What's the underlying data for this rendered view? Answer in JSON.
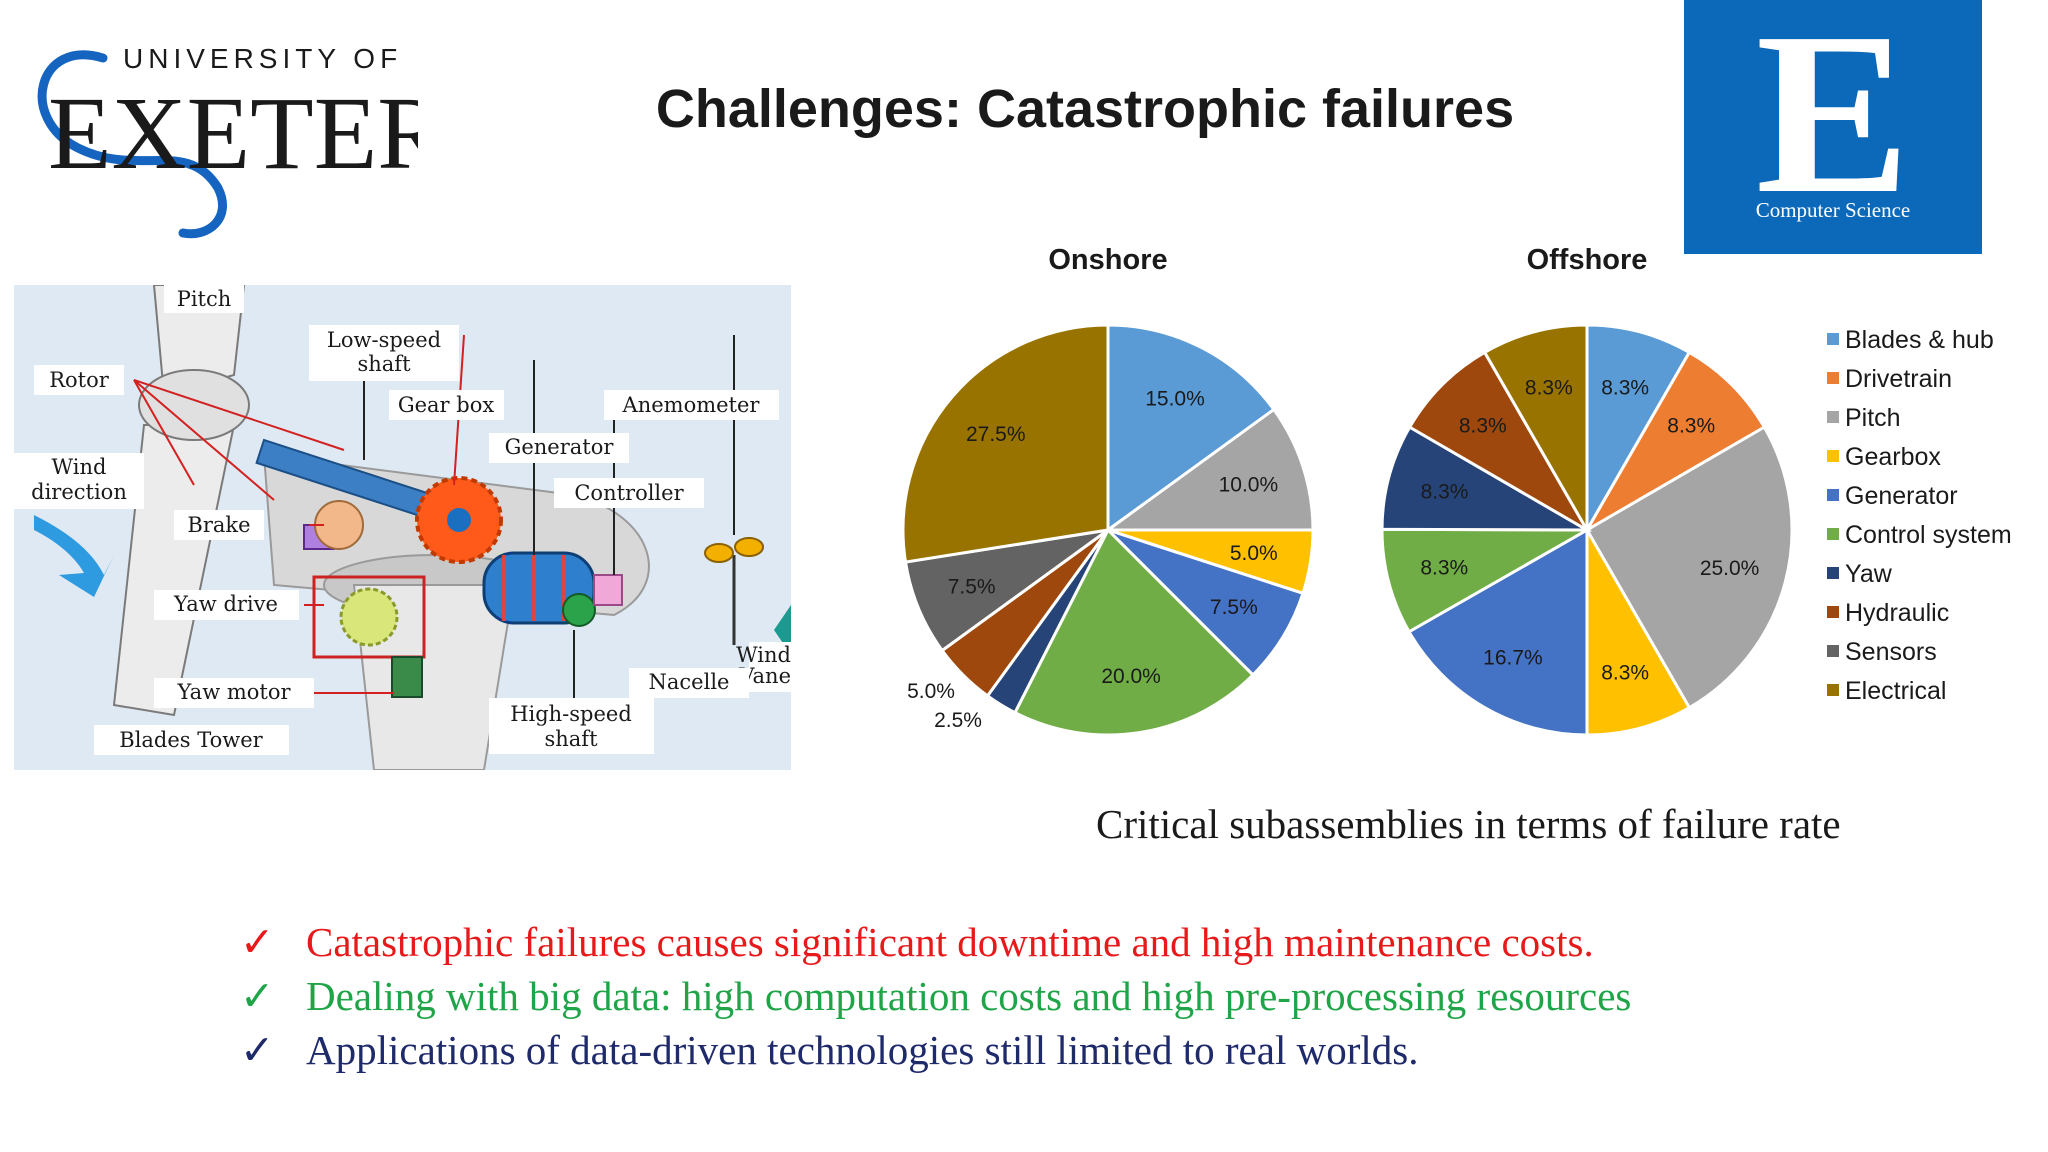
{
  "header": {
    "title": "Challenges: Catastrophic failures",
    "university_logo": {
      "line1": "UNIVERSITY OF",
      "line2": "EXETER"
    },
    "cs_logo": {
      "letter": "E",
      "text": "Computer Science",
      "color": "#0c68b8"
    }
  },
  "diagram": {
    "labels": {
      "pitch": "Pitch",
      "rotor": "Rotor",
      "low_speed_shaft_1": "Low-speed",
      "low_speed_shaft_2": "shaft",
      "gear_box": "Gear box",
      "anemometer": "Anemometer",
      "generator": "Generator",
      "wind_direction_1": "Wind",
      "wind_direction_2": "direction",
      "controller": "Controller",
      "brake": "Brake",
      "yaw_drive": "Yaw drive",
      "wind_vane_1": "Wind",
      "wind_vane_2": "Vane",
      "nacelle": "Nacelle",
      "yaw_motor": "Yaw motor",
      "high_speed_shaft_1": "High-speed",
      "high_speed_shaft_2": "shaft",
      "blades_tower": "Blades Tower"
    }
  },
  "chart_data": [
    {
      "type": "pie",
      "title": "Onshore",
      "categories": [
        "Blades & hub",
        "Pitch",
        "Gearbox",
        "Generator",
        "Control system",
        "Yaw",
        "Hydraulic",
        "Sensors",
        "Electrical"
      ],
      "values": [
        15.0,
        10.0,
        5.0,
        7.5,
        20.0,
        2.5,
        5.0,
        7.5,
        27.5
      ],
      "labels": [
        "15.0%",
        "10.0%",
        "5.0%",
        "7.5%",
        "20.0%",
        "2.5%",
        "5.0%",
        "7.5%",
        "27.5%"
      ],
      "colors": [
        "#5b9bd5",
        "#a5a5a5",
        "#ffc000",
        "#4472c4",
        "#70ad47",
        "#264478",
        "#9e480e",
        "#636363",
        "#997300"
      ]
    },
    {
      "type": "pie",
      "title": "Offshore",
      "categories": [
        "Blades & hub",
        "Drivetrain",
        "Pitch",
        "Gearbox",
        "Generator",
        "Control system",
        "Yaw",
        "Hydraulic",
        "Electrical"
      ],
      "values": [
        8.3,
        8.3,
        25.0,
        8.3,
        16.7,
        8.3,
        8.3,
        8.3,
        8.3
      ],
      "labels": [
        "8.3%",
        "8.3%",
        "25.0%",
        "8.3%",
        "16.7%",
        "8.3%",
        "8.3%",
        "8.3%",
        "8.3%"
      ],
      "colors": [
        "#5b9bd5",
        "#ed7d31",
        "#a5a5a5",
        "#ffc000",
        "#4472c4",
        "#70ad47",
        "#264478",
        "#9e480e",
        "#997300"
      ]
    }
  ],
  "legend": [
    {
      "label": "Blades & hub",
      "color": "#5b9bd5"
    },
    {
      "label": "Drivetrain",
      "color": "#ed7d31"
    },
    {
      "label": "Pitch",
      "color": "#a5a5a5"
    },
    {
      "label": "Gearbox",
      "color": "#ffc000"
    },
    {
      "label": "Generator",
      "color": "#4472c4"
    },
    {
      "label": "Control system",
      "color": "#70ad47"
    },
    {
      "label": "Yaw",
      "color": "#264478"
    },
    {
      "label": "Hydraulic",
      "color": "#9e480e"
    },
    {
      "label": "Sensors",
      "color": "#636363"
    },
    {
      "label": "Electrical",
      "color": "#997300"
    }
  ],
  "caption": "Critical subassemblies in terms of failure rate",
  "bullets": [
    {
      "check": "✓",
      "text": "Catastrophic failures causes significant downtime and high maintenance costs.",
      "color": "#e8191a"
    },
    {
      "check": "✓",
      "text": "Dealing with big data: high computation costs and high pre-processing resources",
      "color": "#1fa548"
    },
    {
      "check": "✓",
      "text": "Applications of data-driven technologies still limited to real worlds.",
      "color": "#1f2a6b"
    }
  ]
}
